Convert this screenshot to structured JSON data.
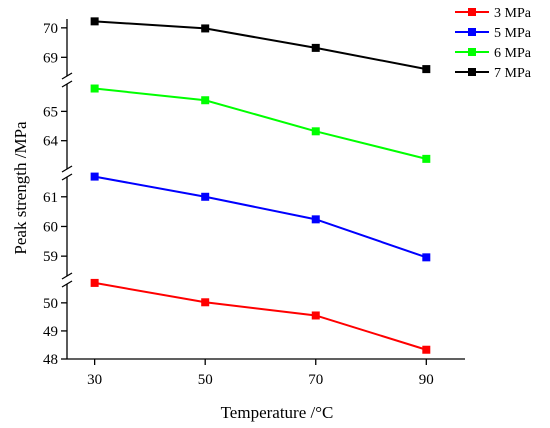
{
  "chart_data": {
    "type": "line",
    "title": "",
    "xlabel": "Temperature /°C",
    "ylabel": "Peak strength /MPa",
    "x": [
      30,
      50,
      70,
      90
    ],
    "x_ticks": [
      "30",
      "50",
      "70",
      "90"
    ],
    "xlim": [
      25,
      97
    ],
    "broken_y_axis": true,
    "grid": false,
    "legend_position": "top-right",
    "segments": [
      {
        "series": "7 MPa",
        "ylim": [
          68.4,
          70.3
        ],
        "ticks": [
          69,
          70
        ]
      },
      {
        "series": "6 MPa",
        "ylim": [
          63.0,
          65.9
        ],
        "ticks": [
          64,
          65
        ]
      },
      {
        "series": "5 MPa",
        "ylim": [
          58.5,
          61.7
        ],
        "ticks": [
          59,
          60,
          61
        ]
      },
      {
        "series": "3 MPa",
        "ylim": [
          48.0,
          50.6
        ],
        "ticks": [
          48,
          49,
          50
        ]
      }
    ],
    "series": [
      {
        "name": "3 MPa",
        "color": "#ff0000",
        "values": [
          50.71,
          50.02,
          49.55,
          48.33
        ]
      },
      {
        "name": "5 MPa",
        "color": "#0000ff",
        "values": [
          61.68,
          61.0,
          60.24,
          58.96
        ]
      },
      {
        "name": "6 MPa",
        "color": "#00ff00",
        "values": [
          65.78,
          65.38,
          64.32,
          63.38
        ]
      },
      {
        "name": "7 MPa",
        "color": "#000000",
        "values": [
          70.22,
          69.98,
          69.32,
          68.6
        ]
      }
    ]
  }
}
